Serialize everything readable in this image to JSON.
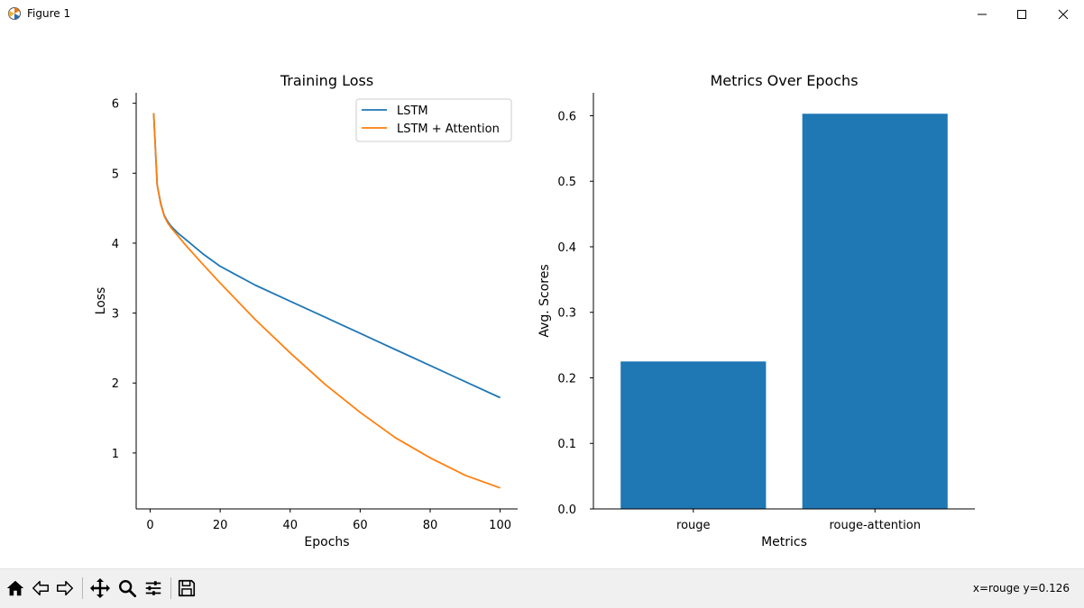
{
  "window": {
    "title": "Figure 1",
    "icon": "matplotlib-icon",
    "controls": [
      "minimize-icon",
      "maximize-icon",
      "close-icon"
    ]
  },
  "toolbar": {
    "tools": [
      "home-icon",
      "back-arrow-icon",
      "forward-arrow-icon",
      "pan-icon",
      "zoom-icon",
      "subplots-config-icon",
      "save-icon"
    ],
    "coordinates": "x=rouge y=0.126"
  },
  "chart_data": [
    {
      "type": "line",
      "title": "Training Loss",
      "xlabel": "Epochs",
      "ylabel": "Loss",
      "xlim": [
        -4,
        105
      ],
      "ylim": [
        0.2,
        6.15
      ],
      "xticks": [
        0,
        20,
        40,
        60,
        80,
        100
      ],
      "yticks": [
        1,
        2,
        3,
        4,
        5,
        6
      ],
      "grid": false,
      "legend_position": "top-right",
      "series": [
        {
          "name": "LSTM",
          "color": "#1f77b4",
          "x": [
            1,
            2,
            3,
            4,
            5,
            6,
            8,
            10,
            15,
            20,
            30,
            40,
            50,
            60,
            70,
            80,
            90,
            100
          ],
          "y": [
            5.86,
            4.83,
            4.57,
            4.4,
            4.31,
            4.24,
            4.14,
            4.06,
            3.85,
            3.67,
            3.4,
            3.17,
            2.94,
            2.71,
            2.48,
            2.25,
            2.02,
            1.79
          ]
        },
        {
          "name": "LSTM + Attention",
          "color": "#ff7f0e",
          "x": [
            1,
            2,
            3,
            4,
            5,
            6,
            8,
            10,
            15,
            20,
            30,
            40,
            50,
            60,
            70,
            80,
            90,
            100
          ],
          "y": [
            5.86,
            4.83,
            4.56,
            4.39,
            4.29,
            4.22,
            4.1,
            3.98,
            3.7,
            3.43,
            2.91,
            2.43,
            1.98,
            1.58,
            1.22,
            0.93,
            0.68,
            0.5
          ]
        }
      ]
    },
    {
      "type": "bar",
      "title": "Metrics Over Epochs",
      "xlabel": "Metrics",
      "ylabel": "Avg. Scores",
      "categories": [
        "rouge",
        "rouge-attention"
      ],
      "values": [
        0.225,
        0.603
      ],
      "color": "#1f77b4",
      "ylim": [
        0,
        0.635
      ],
      "yticks": [
        0.0,
        0.1,
        0.2,
        0.3,
        0.4,
        0.5,
        0.6
      ],
      "ytick_labels": [
        "0.0",
        "0.1",
        "0.2",
        "0.3",
        "0.4",
        "0.5",
        "0.6"
      ],
      "grid": false
    }
  ]
}
